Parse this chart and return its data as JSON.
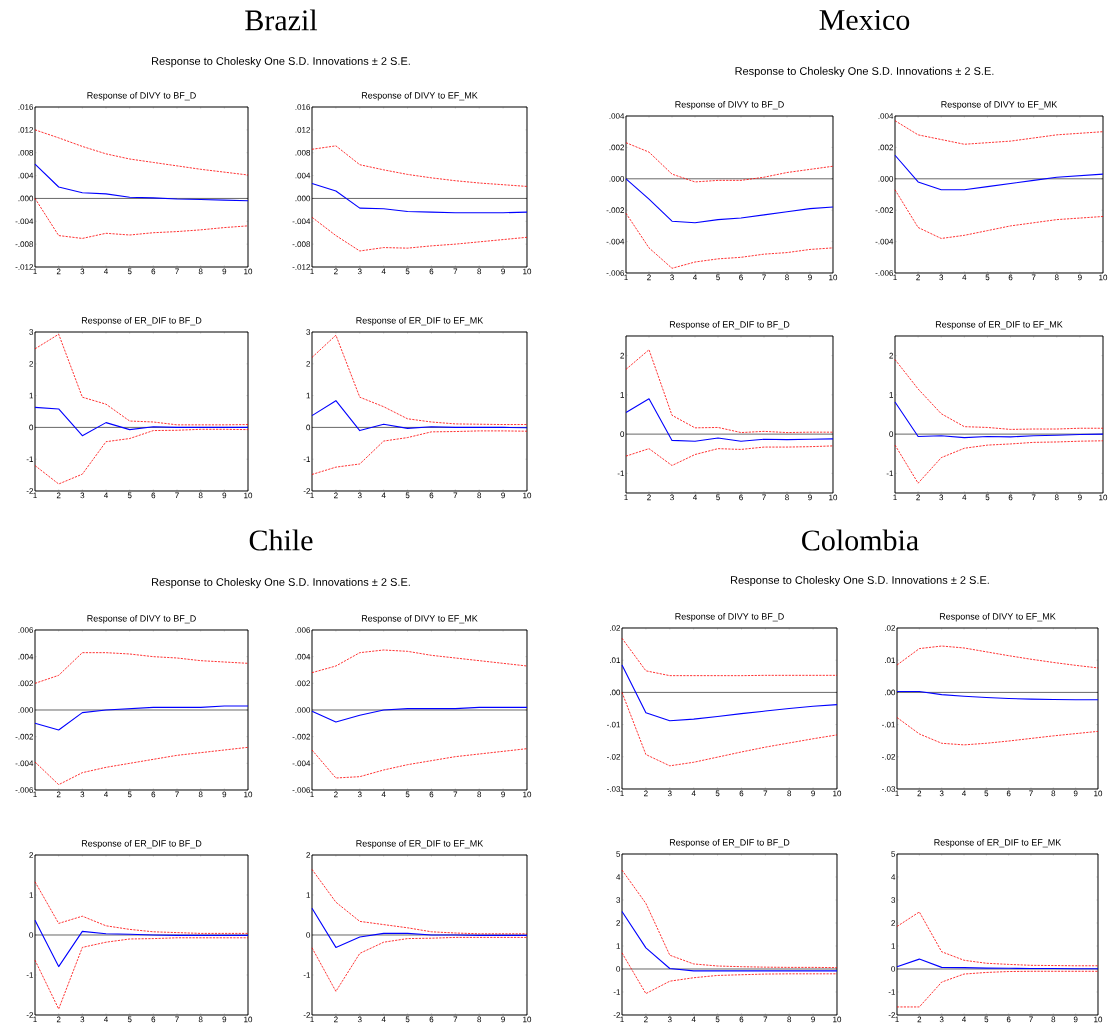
{
  "chart_data": [
    {
      "type": "line",
      "title": "Response of DIVY to BF_D",
      "annotations": [
        "Brazil",
        "Response to Cholesky One S.D. Innovations ± 2 S.E."
      ],
      "x": [
        1,
        2,
        3,
        4,
        5,
        6,
        7,
        8,
        9,
        10
      ],
      "xlim": [
        1,
        10
      ],
      "xticks": [
        1,
        2,
        3,
        4,
        5,
        6,
        7,
        8,
        9,
        10
      ],
      "ylim": [
        -0.012,
        0.016
      ],
      "yticks": [
        {
          "value": -0.012,
          "label": "-.012"
        },
        {
          "value": -0.008,
          "label": "-.008"
        },
        {
          "value": -0.004,
          "label": "-.004"
        },
        {
          "value": 0,
          "label": ".000"
        },
        {
          "value": 0.004,
          "label": ".004"
        },
        {
          "value": 0.008,
          "label": ".008"
        },
        {
          "value": 0.012,
          "label": ".012"
        },
        {
          "value": 0.016,
          "label": ".016"
        }
      ],
      "ref_lines": [
        {
          "axis": "y",
          "value": 0,
          "color": "#000000"
        }
      ],
      "series": [
        {
          "color": "#0000ff",
          "line_style": "solid",
          "values": [
            0.006,
            0.002,
            0.001,
            0.0008,
            0.0002,
            0.0001,
            -0.0001,
            -0.0002,
            -0.0003,
            -0.0004
          ]
        },
        {
          "color": "#ff0000",
          "line_style": "dashed",
          "values": [
            0.012,
            0.0106,
            0.0091,
            0.0078,
            0.0069,
            0.0063,
            0.0057,
            0.0051,
            0.0046,
            0.0041
          ]
        },
        {
          "color": "#ff0000",
          "line_style": "dashed",
          "values": [
            0.0,
            -0.0065,
            -0.007,
            -0.0061,
            -0.0064,
            -0.006,
            -0.0058,
            -0.0055,
            -0.0051,
            -0.0048
          ]
        }
      ]
    },
    {
      "type": "line",
      "title": "Response of DIVY to EF_MK",
      "x": [
        1,
        2,
        3,
        4,
        5,
        6,
        7,
        8,
        9,
        10
      ],
      "xlim": [
        1,
        10
      ],
      "xticks": [
        1,
        2,
        3,
        4,
        5,
        6,
        7,
        8,
        9,
        10
      ],
      "ylim": [
        -0.012,
        0.016
      ],
      "yticks": [
        {
          "value": -0.012,
          "label": "-.012"
        },
        {
          "value": -0.008,
          "label": "-.008"
        },
        {
          "value": -0.004,
          "label": "-.004"
        },
        {
          "value": 0,
          "label": ".000"
        },
        {
          "value": 0.004,
          "label": ".004"
        },
        {
          "value": 0.008,
          "label": ".008"
        },
        {
          "value": 0.012,
          "label": ".012"
        },
        {
          "value": 0.016,
          "label": ".016"
        }
      ],
      "ref_lines": [
        {
          "axis": "y",
          "value": 0,
          "color": "#000000"
        }
      ],
      "series": [
        {
          "color": "#0000ff",
          "line_style": "solid",
          "values": [
            0.0026,
            0.0013,
            -0.0017,
            -0.0018,
            -0.0023,
            -0.0024,
            -0.0025,
            -0.0025,
            -0.0025,
            -0.0024
          ]
        },
        {
          "color": "#ff0000",
          "line_style": "dashed",
          "values": [
            0.0086,
            0.0092,
            0.0059,
            0.005,
            0.0042,
            0.0036,
            0.0031,
            0.0027,
            0.0024,
            0.0021
          ]
        },
        {
          "color": "#ff0000",
          "line_style": "dashed",
          "values": [
            -0.0033,
            -0.0065,
            -0.0092,
            -0.0086,
            -0.0087,
            -0.0083,
            -0.008,
            -0.0076,
            -0.0072,
            -0.0068
          ]
        }
      ]
    },
    {
      "type": "line",
      "title": "Response of ER_DIF to BF_D",
      "x": [
        1,
        2,
        3,
        4,
        5,
        6,
        7,
        8,
        9,
        10
      ],
      "xlim": [
        1,
        10
      ],
      "xticks": [
        1,
        2,
        3,
        4,
        5,
        6,
        7,
        8,
        9,
        10
      ],
      "ylim": [
        -2,
        3
      ],
      "yticks": [
        -2,
        -1,
        0,
        1,
        2,
        3
      ],
      "ref_lines": [
        {
          "axis": "y",
          "value": 0,
          "color": "#000000"
        }
      ],
      "series": [
        {
          "color": "#0000ff",
          "line_style": "solid",
          "values": [
            0.63,
            0.58,
            -0.26,
            0.15,
            -0.07,
            0.02,
            0.0,
            0.0,
            0.0,
            0.0
          ]
        },
        {
          "color": "#ff0000",
          "line_style": "dashed",
          "values": [
            2.47,
            2.93,
            0.95,
            0.73,
            0.2,
            0.17,
            0.08,
            0.08,
            0.08,
            0.09
          ]
        },
        {
          "color": "#ff0000",
          "line_style": "dashed",
          "values": [
            -1.2,
            -1.78,
            -1.47,
            -0.45,
            -0.35,
            -0.1,
            -0.09,
            -0.06,
            -0.06,
            -0.07
          ]
        }
      ]
    },
    {
      "type": "line",
      "title": "Response of ER_DIF to EF_MK",
      "x": [
        1,
        2,
        3,
        4,
        5,
        6,
        7,
        8,
        9,
        10
      ],
      "xlim": [
        1,
        10
      ],
      "xticks": [
        1,
        2,
        3,
        4,
        5,
        6,
        7,
        8,
        9,
        10
      ],
      "ylim": [
        -2,
        3
      ],
      "yticks": [
        -2,
        -1,
        0,
        1,
        2,
        3
      ],
      "ref_lines": [
        {
          "axis": "y",
          "value": 0,
          "color": "#000000"
        }
      ],
      "series": [
        {
          "color": "#0000ff",
          "line_style": "solid",
          "values": [
            0.37,
            0.84,
            -0.1,
            0.1,
            -0.03,
            0.02,
            0.0,
            0.0,
            0.0,
            -0.01
          ]
        },
        {
          "color": "#ff0000",
          "line_style": "dashed",
          "values": [
            2.2,
            2.9,
            0.95,
            0.65,
            0.27,
            0.17,
            0.11,
            0.1,
            0.09,
            0.09
          ]
        },
        {
          "color": "#ff0000",
          "line_style": "dashed",
          "values": [
            -1.48,
            -1.25,
            -1.15,
            -0.43,
            -0.32,
            -0.14,
            -0.13,
            -0.11,
            -0.11,
            -0.12
          ]
        }
      ]
    },
    {
      "type": "line",
      "title": "Response of DIVY to BF_D",
      "annotations": [
        "Mexico",
        "Response to Cholesky One S.D. Innovations ± 2 S.E."
      ],
      "x": [
        1,
        2,
        3,
        4,
        5,
        6,
        7,
        8,
        9,
        10
      ],
      "xlim": [
        1,
        10
      ],
      "xticks": [
        1,
        2,
        3,
        4,
        5,
        6,
        7,
        8,
        9,
        10
      ],
      "ylim": [
        -0.006,
        0.004
      ],
      "yticks": [
        {
          "value": -0.006,
          "label": "-.006"
        },
        {
          "value": -0.004,
          "label": "-.004"
        },
        {
          "value": -0.002,
          "label": "-.002"
        },
        {
          "value": 0,
          "label": ".000"
        },
        {
          "value": 0.002,
          "label": ".002"
        },
        {
          "value": 0.004,
          "label": ".004"
        }
      ],
      "ref_lines": [
        {
          "axis": "y",
          "value": 0,
          "color": "#000000"
        }
      ],
      "series": [
        {
          "color": "#0000ff",
          "line_style": "solid",
          "values": [
            0.0,
            -0.0013,
            -0.0027,
            -0.0028,
            -0.0026,
            -0.0025,
            -0.0023,
            -0.0021,
            -0.0019,
            -0.0018
          ]
        },
        {
          "color": "#ff0000",
          "line_style": "dashed",
          "values": [
            0.0023,
            0.0017,
            0.0003,
            -0.0002,
            -0.0001,
            -0.0001,
            0.0001,
            0.0004,
            0.0006,
            0.0008
          ]
        },
        {
          "color": "#ff0000",
          "line_style": "dashed",
          "values": [
            -0.0022,
            -0.0044,
            -0.0057,
            -0.0053,
            -0.0051,
            -0.005,
            -0.0048,
            -0.0047,
            -0.0045,
            -0.0044
          ]
        }
      ]
    },
    {
      "type": "line",
      "title": "Response of DIVY to EF_MK",
      "x": [
        1,
        2,
        3,
        4,
        5,
        6,
        7,
        8,
        9,
        10
      ],
      "xlim": [
        1,
        10
      ],
      "xticks": [
        1,
        2,
        3,
        4,
        5,
        6,
        7,
        8,
        9,
        10
      ],
      "ylim": [
        -0.006,
        0.004
      ],
      "yticks": [
        {
          "value": -0.006,
          "label": "-.006"
        },
        {
          "value": -0.004,
          "label": "-.004"
        },
        {
          "value": -0.002,
          "label": "-.002"
        },
        {
          "value": 0,
          "label": ".000"
        },
        {
          "value": 0.002,
          "label": ".002"
        },
        {
          "value": 0.004,
          "label": ".004"
        }
      ],
      "ref_lines": [
        {
          "axis": "y",
          "value": 0,
          "color": "#000000"
        }
      ],
      "series": [
        {
          "color": "#0000ff",
          "line_style": "solid",
          "values": [
            0.0015,
            -0.0002,
            -0.0007,
            -0.0007,
            -0.0005,
            -0.0003,
            -0.0001,
            0.0001,
            0.0002,
            0.0003
          ]
        },
        {
          "color": "#ff0000",
          "line_style": "dashed",
          "values": [
            0.0037,
            0.0028,
            0.0025,
            0.0022,
            0.0023,
            0.0024,
            0.0026,
            0.0028,
            0.0029,
            0.003
          ]
        },
        {
          "color": "#ff0000",
          "line_style": "dashed",
          "values": [
            -0.0007,
            -0.0031,
            -0.0038,
            -0.0036,
            -0.0033,
            -0.003,
            -0.0028,
            -0.0026,
            -0.0025,
            -0.0024
          ]
        }
      ]
    },
    {
      "type": "line",
      "title": "Response of ER_DIF to BF_D",
      "x": [
        1,
        2,
        3,
        4,
        5,
        6,
        7,
        8,
        9,
        10
      ],
      "xlim": [
        1,
        10
      ],
      "xticks": [
        1,
        2,
        3,
        4,
        5,
        6,
        7,
        8,
        9,
        10
      ],
      "ylim": [
        -1.5,
        2.5
      ],
      "yticks": [
        -1,
        0,
        1,
        2
      ],
      "ref_lines": [
        {
          "axis": "y",
          "value": 0,
          "color": "#000000"
        }
      ],
      "series": [
        {
          "color": "#0000ff",
          "line_style": "solid",
          "values": [
            0.55,
            0.9,
            -0.16,
            -0.18,
            -0.1,
            -0.18,
            -0.13,
            -0.14,
            -0.13,
            -0.12
          ]
        },
        {
          "color": "#ff0000",
          "line_style": "dashed",
          "values": [
            1.65,
            2.15,
            0.48,
            0.16,
            0.17,
            0.04,
            0.07,
            0.04,
            0.05,
            0.05
          ]
        },
        {
          "color": "#ff0000",
          "line_style": "dashed",
          "values": [
            -0.56,
            -0.37,
            -0.8,
            -0.52,
            -0.37,
            -0.39,
            -0.33,
            -0.33,
            -0.32,
            -0.3
          ]
        }
      ]
    },
    {
      "type": "line",
      "title": "Response of ER_DIF to EF_MK",
      "x": [
        1,
        2,
        3,
        4,
        5,
        6,
        7,
        8,
        9,
        10
      ],
      "xlim": [
        1,
        10
      ],
      "xticks": [
        1,
        2,
        3,
        4,
        5,
        6,
        7,
        8,
        9,
        10
      ],
      "ylim": [
        -1.5,
        2.5
      ],
      "yticks": [
        -1,
        0,
        1,
        2
      ],
      "ref_lines": [
        {
          "axis": "y",
          "value": 0,
          "color": "#000000"
        }
      ],
      "series": [
        {
          "color": "#0000ff",
          "line_style": "solid",
          "values": [
            0.82,
            -0.06,
            -0.04,
            -0.09,
            -0.06,
            -0.07,
            -0.04,
            -0.03,
            -0.01,
            0.0
          ]
        },
        {
          "color": "#ff0000",
          "line_style": "dashed",
          "values": [
            1.9,
            1.15,
            0.52,
            0.19,
            0.17,
            0.12,
            0.13,
            0.13,
            0.15,
            0.15
          ]
        },
        {
          "color": "#ff0000",
          "line_style": "dashed",
          "values": [
            -0.28,
            -1.25,
            -0.6,
            -0.36,
            -0.28,
            -0.25,
            -0.21,
            -0.2,
            -0.18,
            -0.17
          ]
        }
      ]
    },
    {
      "type": "line",
      "title": "Response of DIVY to BF_D",
      "annotations": [
        "Chile",
        "Response to Cholesky One S.D. Innovations ± 2 S.E."
      ],
      "x": [
        1,
        2,
        3,
        4,
        5,
        6,
        7,
        8,
        9,
        10
      ],
      "xlim": [
        1,
        10
      ],
      "xticks": [
        1,
        2,
        3,
        4,
        5,
        6,
        7,
        8,
        9,
        10
      ],
      "ylim": [
        -0.006,
        0.006
      ],
      "yticks": [
        {
          "value": -0.006,
          "label": "-.006"
        },
        {
          "value": -0.004,
          "label": "-.004"
        },
        {
          "value": -0.002,
          "label": "-.002"
        },
        {
          "value": 0,
          "label": ".000"
        },
        {
          "value": 0.002,
          "label": ".002"
        },
        {
          "value": 0.004,
          "label": ".004"
        },
        {
          "value": 0.006,
          "label": ".006"
        }
      ],
      "ref_lines": [
        {
          "axis": "y",
          "value": 0,
          "color": "#000000"
        }
      ],
      "series": [
        {
          "color": "#0000ff",
          "line_style": "solid",
          "values": [
            -0.001,
            -0.0015,
            -0.0002,
            0.0,
            0.0001,
            0.0002,
            0.0002,
            0.0002,
            0.0003,
            0.0003
          ]
        },
        {
          "color": "#ff0000",
          "line_style": "dashed",
          "values": [
            0.002,
            0.0026,
            0.0043,
            0.0043,
            0.0042,
            0.004,
            0.0039,
            0.0037,
            0.0036,
            0.0035
          ]
        },
        {
          "color": "#ff0000",
          "line_style": "dashed",
          "values": [
            -0.0039,
            -0.0056,
            -0.0047,
            -0.0043,
            -0.004,
            -0.0037,
            -0.0034,
            -0.0032,
            -0.003,
            -0.0028
          ]
        }
      ]
    },
    {
      "type": "line",
      "title": "Response of DIVY to EF_MK",
      "x": [
        1,
        2,
        3,
        4,
        5,
        6,
        7,
        8,
        9,
        10
      ],
      "xlim": [
        1,
        10
      ],
      "xticks": [
        1,
        2,
        3,
        4,
        5,
        6,
        7,
        8,
        9,
        10
      ],
      "ylim": [
        -0.006,
        0.006
      ],
      "yticks": [
        {
          "value": -0.006,
          "label": "-.006"
        },
        {
          "value": -0.004,
          "label": "-.004"
        },
        {
          "value": -0.002,
          "label": "-.002"
        },
        {
          "value": 0,
          "label": ".000"
        },
        {
          "value": 0.002,
          "label": ".002"
        },
        {
          "value": 0.004,
          "label": ".004"
        },
        {
          "value": 0.006,
          "label": ".006"
        }
      ],
      "ref_lines": [
        {
          "axis": "y",
          "value": 0,
          "color": "#000000"
        }
      ],
      "series": [
        {
          "color": "#0000ff",
          "line_style": "solid",
          "values": [
            -0.0001,
            -0.0009,
            -0.0004,
            0.0,
            0.0001,
            0.0001,
            0.0001,
            0.0002,
            0.0002,
            0.0002
          ]
        },
        {
          "color": "#ff0000",
          "line_style": "dashed",
          "values": [
            0.0028,
            0.0033,
            0.0043,
            0.0045,
            0.0044,
            0.0041,
            0.0039,
            0.0037,
            0.0035,
            0.0033
          ]
        },
        {
          "color": "#ff0000",
          "line_style": "dashed",
          "values": [
            -0.003,
            -0.0051,
            -0.005,
            -0.0045,
            -0.0041,
            -0.0038,
            -0.0035,
            -0.0033,
            -0.0031,
            -0.0029
          ]
        }
      ]
    },
    {
      "type": "line",
      "title": "Response of ER_DIF to BF_D",
      "x": [
        1,
        2,
        3,
        4,
        5,
        6,
        7,
        8,
        9,
        10
      ],
      "xlim": [
        1,
        10
      ],
      "xticks": [
        1,
        2,
        3,
        4,
        5,
        6,
        7,
        8,
        9,
        10
      ],
      "ylim": [
        -2,
        2
      ],
      "yticks": [
        -2,
        -1,
        0,
        1,
        2
      ],
      "ref_lines": [
        {
          "axis": "y",
          "value": 0,
          "color": "#000000"
        }
      ],
      "series": [
        {
          "color": "#0000ff",
          "line_style": "solid",
          "values": [
            0.37,
            -0.79,
            0.09,
            0.03,
            0.02,
            0.0,
            -0.01,
            -0.01,
            -0.01,
            -0.01
          ]
        },
        {
          "color": "#ff0000",
          "line_style": "dashed",
          "values": [
            1.33,
            0.29,
            0.47,
            0.23,
            0.14,
            0.08,
            0.06,
            0.04,
            0.04,
            0.04
          ]
        },
        {
          "color": "#ff0000",
          "line_style": "dashed",
          "values": [
            -0.63,
            -1.85,
            -0.31,
            -0.18,
            -0.1,
            -0.09,
            -0.07,
            -0.07,
            -0.07,
            -0.07
          ]
        }
      ]
    },
    {
      "type": "line",
      "title": "Response of ER_DIF to EF_MK",
      "x": [
        1,
        2,
        3,
        4,
        5,
        6,
        7,
        8,
        9,
        10
      ],
      "xlim": [
        1,
        10
      ],
      "xticks": [
        1,
        2,
        3,
        4,
        5,
        6,
        7,
        8,
        9,
        10
      ],
      "ylim": [
        -2,
        2
      ],
      "yticks": [
        -2,
        -1,
        0,
        1,
        2
      ],
      "ref_lines": [
        {
          "axis": "y",
          "value": 0,
          "color": "#000000"
        }
      ],
      "series": [
        {
          "color": "#0000ff",
          "line_style": "solid",
          "values": [
            0.67,
            -0.31,
            -0.05,
            0.04,
            0.04,
            0.0,
            0.0,
            -0.01,
            -0.01,
            -0.01
          ]
        },
        {
          "color": "#ff0000",
          "line_style": "dashed",
          "values": [
            1.64,
            0.82,
            0.34,
            0.26,
            0.18,
            0.08,
            0.05,
            0.03,
            0.03,
            0.03
          ]
        },
        {
          "color": "#ff0000",
          "line_style": "dashed",
          "values": [
            -0.32,
            -1.41,
            -0.46,
            -0.18,
            -0.09,
            -0.08,
            -0.06,
            -0.06,
            -0.06,
            -0.06
          ]
        }
      ]
    },
    {
      "type": "line",
      "title": "Response of DIVY to BF_D",
      "annotations": [
        "Colombia",
        "Response to Cholesky One S.D. Innovations ± 2 S.E."
      ],
      "x": [
        1,
        2,
        3,
        4,
        5,
        6,
        7,
        8,
        9,
        10
      ],
      "xlim": [
        1,
        10
      ],
      "xticks": [
        1,
        2,
        3,
        4,
        5,
        6,
        7,
        8,
        9,
        10
      ],
      "ylim": [
        -0.03,
        0.02
      ],
      "yticks": [
        {
          "value": -0.03,
          "label": "-.03"
        },
        {
          "value": -0.02,
          "label": "-.02"
        },
        {
          "value": -0.01,
          "label": "-.01"
        },
        {
          "value": 0,
          "label": ".00"
        },
        {
          "value": 0.01,
          "label": ".01"
        },
        {
          "value": 0.02,
          "label": ".02"
        }
      ],
      "ref_lines": [
        {
          "axis": "y",
          "value": 0,
          "color": "#000000"
        }
      ],
      "series": [
        {
          "color": "#0000ff",
          "line_style": "solid",
          "values": [
            0.0085,
            -0.0063,
            -0.0088,
            -0.0083,
            -0.0075,
            -0.0066,
            -0.0058,
            -0.005,
            -0.0043,
            -0.0038
          ]
        },
        {
          "color": "#ff0000",
          "line_style": "dashed",
          "values": [
            0.0168,
            0.0067,
            0.0052,
            0.0052,
            0.0052,
            0.0052,
            0.0053,
            0.0053,
            0.0053,
            0.0053
          ]
        },
        {
          "color": "#ff0000",
          "line_style": "dashed",
          "values": [
            0.0,
            -0.0193,
            -0.0228,
            -0.0217,
            -0.0201,
            -0.0185,
            -0.017,
            -0.0157,
            -0.0144,
            -0.0132
          ]
        }
      ]
    },
    {
      "type": "line",
      "title": "Response of DIVY to EF_MK",
      "x": [
        1,
        2,
        3,
        4,
        5,
        6,
        7,
        8,
        9,
        10
      ],
      "xlim": [
        1,
        10
      ],
      "xticks": [
        1,
        2,
        3,
        4,
        5,
        6,
        7,
        8,
        9,
        10
      ],
      "ylim": [
        -0.03,
        0.02
      ],
      "yticks": [
        {
          "value": -0.03,
          "label": "-.03"
        },
        {
          "value": -0.02,
          "label": "-.02"
        },
        {
          "value": -0.01,
          "label": "-.01"
        },
        {
          "value": 0,
          "label": ".00"
        },
        {
          "value": 0.01,
          "label": ".01"
        },
        {
          "value": 0.02,
          "label": ".02"
        }
      ],
      "ref_lines": [
        {
          "axis": "y",
          "value": 0,
          "color": "#000000"
        }
      ],
      "series": [
        {
          "color": "#0000ff",
          "line_style": "solid",
          "values": [
            0.0003,
            0.0003,
            -0.0007,
            -0.0012,
            -0.0016,
            -0.0019,
            -0.0021,
            -0.0022,
            -0.0023,
            -0.0023
          ]
        },
        {
          "color": "#ff0000",
          "line_style": "dashed",
          "values": [
            0.0085,
            0.0136,
            0.0144,
            0.0138,
            0.0126,
            0.0114,
            0.0103,
            0.0093,
            0.0084,
            0.0076
          ]
        },
        {
          "color": "#ff0000",
          "line_style": "dashed",
          "values": [
            -0.0078,
            -0.0129,
            -0.0158,
            -0.0163,
            -0.0158,
            -0.0151,
            -0.0143,
            -0.0135,
            -0.0128,
            -0.0121
          ]
        }
      ]
    },
    {
      "type": "line",
      "title": "Response of ER_DIF to BF_D",
      "x": [
        1,
        2,
        3,
        4,
        5,
        6,
        7,
        8,
        9,
        10
      ],
      "xlim": [
        1,
        10
      ],
      "xticks": [
        1,
        2,
        3,
        4,
        5,
        6,
        7,
        8,
        9,
        10
      ],
      "ylim": [
        -2,
        5
      ],
      "yticks": [
        -2,
        -1,
        0,
        1,
        2,
        3,
        4,
        5
      ],
      "ref_lines": [
        {
          "axis": "y",
          "value": 0,
          "color": "#000000"
        }
      ],
      "series": [
        {
          "color": "#0000ff",
          "line_style": "solid",
          "values": [
            2.5,
            0.92,
            0.02,
            -0.08,
            -0.08,
            -0.08,
            -0.08,
            -0.08,
            -0.08,
            -0.08
          ]
        },
        {
          "color": "#ff0000",
          "line_style": "dashed",
          "values": [
            4.3,
            2.85,
            0.6,
            0.22,
            0.13,
            0.1,
            0.08,
            0.07,
            0.07,
            0.06
          ]
        },
        {
          "color": "#ff0000",
          "line_style": "dashed",
          "values": [
            0.7,
            -1.07,
            -0.53,
            -0.38,
            -0.28,
            -0.25,
            -0.22,
            -0.21,
            -0.21,
            -0.21
          ]
        }
      ]
    },
    {
      "type": "line",
      "title": "Response of ER_DIF to EF_MK",
      "x": [
        1,
        2,
        3,
        4,
        5,
        6,
        7,
        8,
        9,
        10
      ],
      "xlim": [
        1,
        10
      ],
      "xticks": [
        1,
        2,
        3,
        4,
        5,
        6,
        7,
        8,
        9,
        10
      ],
      "ylim": [
        -2,
        5
      ],
      "yticks": [
        -2,
        -1,
        0,
        1,
        2,
        3,
        4,
        5
      ],
      "ref_lines": [
        {
          "axis": "y",
          "value": 0,
          "color": "#000000"
        }
      ],
      "series": [
        {
          "color": "#0000ff",
          "line_style": "solid",
          "values": [
            0.1,
            0.43,
            0.07,
            0.06,
            0.04,
            0.03,
            0.02,
            0.02,
            0.01,
            0.01
          ]
        },
        {
          "color": "#ff0000",
          "line_style": "dashed",
          "values": [
            1.85,
            2.48,
            0.75,
            0.38,
            0.25,
            0.2,
            0.16,
            0.15,
            0.14,
            0.14
          ]
        },
        {
          "color": "#ff0000",
          "line_style": "dashed",
          "values": [
            -1.65,
            -1.65,
            -0.57,
            -0.22,
            -0.15,
            -0.11,
            -0.1,
            -0.1,
            -0.1,
            -0.1
          ]
        }
      ]
    }
  ]
}
